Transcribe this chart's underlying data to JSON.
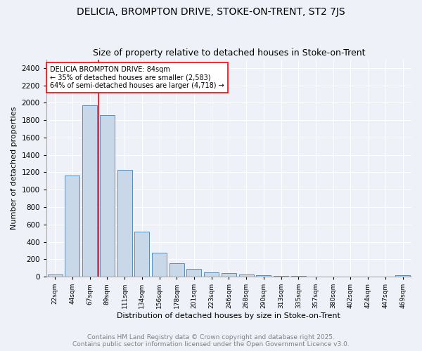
{
  "title1": "DELICIA, BROMPTON DRIVE, STOKE-ON-TRENT, ST2 7JS",
  "title2": "Size of property relative to detached houses in Stoke-on-Trent",
  "xlabel": "Distribution of detached houses by size in Stoke-on-Trent",
  "ylabel": "Number of detached properties",
  "categories": [
    "22sqm",
    "44sqm",
    "67sqm",
    "89sqm",
    "111sqm",
    "134sqm",
    "156sqm",
    "178sqm",
    "201sqm",
    "223sqm",
    "246sqm",
    "268sqm",
    "290sqm",
    "313sqm",
    "335sqm",
    "357sqm",
    "380sqm",
    "402sqm",
    "424sqm",
    "447sqm",
    "469sqm"
  ],
  "values": [
    25,
    1160,
    1970,
    1855,
    1230,
    520,
    275,
    155,
    90,
    45,
    42,
    22,
    15,
    8,
    5,
    4,
    3,
    2,
    2,
    2,
    15
  ],
  "bar_color": "#c8d8e8",
  "bar_edge_color": "#5b8db8",
  "vline_color": "red",
  "vline_pos": 2.5,
  "annotation_text": "DELICIA BROMPTON DRIVE: 84sqm\n← 35% of detached houses are smaller (2,583)\n64% of semi-detached houses are larger (4,718) →",
  "annotation_box_color": "white",
  "annotation_box_edge_color": "red",
  "ylim": [
    0,
    2500
  ],
  "yticks": [
    0,
    200,
    400,
    600,
    800,
    1000,
    1200,
    1400,
    1600,
    1800,
    2000,
    2200,
    2400
  ],
  "bg_color": "#eef2f8",
  "plot_bg_color": "#eef2f8",
  "footer1": "Contains HM Land Registry data © Crown copyright and database right 2025.",
  "footer2": "Contains public sector information licensed under the Open Government Licence v3.0.",
  "title1_fontsize": 10,
  "title2_fontsize": 9,
  "annotation_fontsize": 7,
  "footer_fontsize": 6.5,
  "ylabel_fontsize": 8,
  "xlabel_fontsize": 8,
  "xtick_fontsize": 6.5,
  "ytick_fontsize": 7.5
}
